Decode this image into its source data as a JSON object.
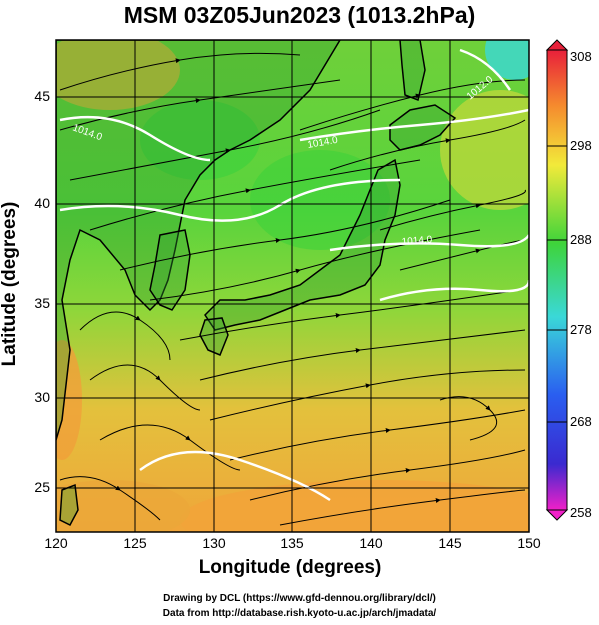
{
  "title": "MSM 03Z05Jun2023 (1013.2hPa)",
  "axes": {
    "xlabel": "Longitude (degrees)",
    "ylabel": "Latitude  (degrees)",
    "xticks": [
      "120",
      "125",
      "130",
      "135",
      "140",
      "145",
      "150"
    ],
    "yticks": [
      "25",
      "30",
      "35",
      "40",
      "45"
    ]
  },
  "colorbar": {
    "ticks": [
      "308",
      "298",
      "288",
      "278",
      "268",
      "258"
    ]
  },
  "contour_labels": [
    "1014.0",
    "1014.0",
    "1014.0",
    "1012.0"
  ],
  "credits": {
    "line1": "Drawing by DCL (https://www.gfd-dennou.org/library/dcl/)",
    "line2": "Data from http://database.rish.kyoto-u.ac.jp/arch/jmadata/"
  },
  "colors": {
    "warm": "#f3a83a",
    "mid": "#4cd53a",
    "cool": "#3ad8d8",
    "land": "#3d7d2a"
  },
  "chart_data": {
    "type": "heatmap",
    "title": "MSM 03Z05Jun2023 (1013.2hPa)",
    "xlabel": "Longitude (degrees)",
    "ylabel": "Latitude  (degrees)",
    "xlim": [
      120,
      150
    ],
    "ylim": [
      22.5,
      48
    ],
    "colorbar_range": [
      258,
      308
    ],
    "colorbar_ticks": [
      258,
      268,
      278,
      288,
      298,
      308
    ],
    "grid": true,
    "overlays": [
      "streamlines",
      "pressure-contours",
      "coastlines"
    ]
  }
}
